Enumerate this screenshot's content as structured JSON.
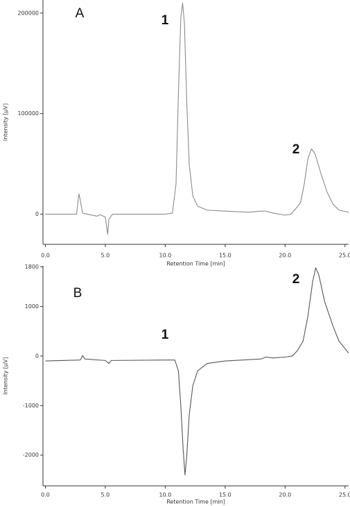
{
  "chart_data": [
    {
      "type": "line",
      "panel": "A",
      "annotations": [
        "1",
        "2"
      ],
      "x_label": "Retention Time [min]",
      "y_label": "Intensity [µV]",
      "xlim": [
        -0.2,
        25.3
      ],
      "ylim": [
        -30000,
        213000
      ],
      "xticks": [
        {
          "value": 0,
          "label": "0.0"
        },
        {
          "value": 5,
          "label": "5.0"
        },
        {
          "value": 10,
          "label": "10.0"
        },
        {
          "value": 15,
          "label": "15.0"
        },
        {
          "value": 20,
          "label": "20.0"
        },
        {
          "value": 25,
          "label": "25.0"
        }
      ],
      "yticks": [
        0,
        100000,
        200000
      ],
      "series": [
        {
          "color": "#8a8a8a",
          "x": [
            0,
            2.6,
            2.8,
            2.9,
            3.1,
            3.5,
            4.3,
            4.6,
            5.0,
            5.2,
            5.3,
            5.6,
            10,
            10.6,
            10.9,
            11.1,
            11.3,
            11.45,
            11.6,
            11.8,
            12.0,
            12.3,
            12.7,
            13.5,
            15,
            17,
            18,
            18.4,
            19,
            20,
            20.5,
            21,
            21.3,
            21.6,
            21.9,
            22.2,
            22.5,
            23,
            23.5,
            24,
            24.5,
            25.3
          ],
          "values": [
            0,
            0,
            20000,
            15000,
            1000,
            0,
            -2000,
            -500,
            -3000,
            -20000,
            -5000,
            0,
            0,
            1000,
            30000,
            120000,
            195000,
            210000,
            190000,
            110000,
            50000,
            18000,
            8000,
            4000,
            3000,
            2000,
            3000,
            3000,
            1000,
            -1000,
            0,
            7000,
            12000,
            30000,
            55000,
            65000,
            60000,
            40000,
            22000,
            10000,
            4000,
            2000
          ]
        }
      ]
    },
    {
      "type": "line",
      "panel": "B",
      "annotations": [
        "1",
        "2"
      ],
      "x_label": "Retention Time [min]",
      "y_label": "Intensity [µV]",
      "xlim": [
        -0.2,
        25.3
      ],
      "ylim": [
        -2620,
        1820
      ],
      "xticks": [
        {
          "value": 0,
          "label": "0.0"
        },
        {
          "value": 5,
          "label": "5.0"
        },
        {
          "value": 10,
          "label": "10.0"
        },
        {
          "value": 15,
          "label": "15.0"
        },
        {
          "value": 20,
          "label": "20.0"
        },
        {
          "value": 25,
          "label": "25.0"
        }
      ],
      "yticks": [
        -2000,
        -1000,
        0,
        1000,
        1800
      ],
      "series": [
        {
          "color": "#555555",
          "x": [
            0,
            2.9,
            3.0,
            3.1,
            3.3,
            5.0,
            5.3,
            5.5,
            10,
            10.8,
            11.1,
            11.3,
            11.5,
            11.65,
            11.8,
            12.0,
            12.3,
            12.7,
            13.5,
            15,
            18,
            18.4,
            19,
            20,
            20.6,
            21,
            21.5,
            21.9,
            22.3,
            22.55,
            22.8,
            23.3,
            24,
            24.5,
            25.3
          ],
          "values": [
            -100,
            -80,
            -50,
            10,
            -60,
            -90,
            -150,
            -90,
            -80,
            -80,
            -300,
            -1000,
            -1900,
            -2400,
            -2000,
            -1200,
            -600,
            -300,
            -150,
            -100,
            -60,
            -20,
            -40,
            -20,
            0,
            100,
            300,
            800,
            1500,
            1780,
            1650,
            1100,
            600,
            300,
            60
          ]
        }
      ]
    }
  ]
}
